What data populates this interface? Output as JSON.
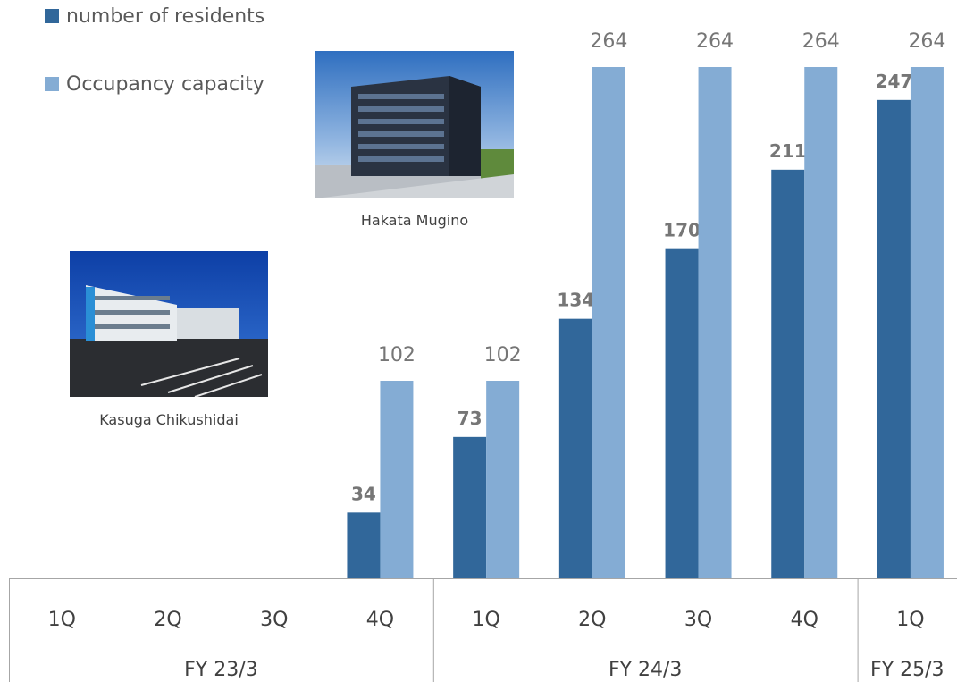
{
  "colors": {
    "residents": "#31679A",
    "capacity": "#84ACD4",
    "axis": "#A6A6A6",
    "value_label": "#767676",
    "tick_label": "#404040"
  },
  "legend": {
    "residents_label": "number of residents",
    "capacity_label": "Occupancy capacity"
  },
  "photos": {
    "hakata": {
      "caption": "Hakata Mugino"
    },
    "kasuga": {
      "caption": "Kasuga Chikushidai"
    }
  },
  "chart_data": {
    "type": "bar",
    "categories": [
      "1Q",
      "2Q",
      "3Q",
      "4Q",
      "1Q",
      "2Q",
      "3Q",
      "4Q",
      "1Q"
    ],
    "groups": [
      {
        "label": "FY 23/3",
        "count": 4
      },
      {
        "label": "FY 24/3",
        "count": 4
      },
      {
        "label": "FY 25/3",
        "count": 1
      }
    ],
    "series": [
      {
        "name": "number of residents",
        "values": [
          null,
          null,
          null,
          34,
          73,
          134,
          170,
          211,
          247
        ]
      },
      {
        "name": "Occupancy capacity",
        "values": [
          null,
          null,
          null,
          102,
          102,
          264,
          264,
          264,
          264
        ]
      }
    ],
    "ylim": [
      0,
      264
    ],
    "legend_position": "top-left",
    "grid": false
  }
}
